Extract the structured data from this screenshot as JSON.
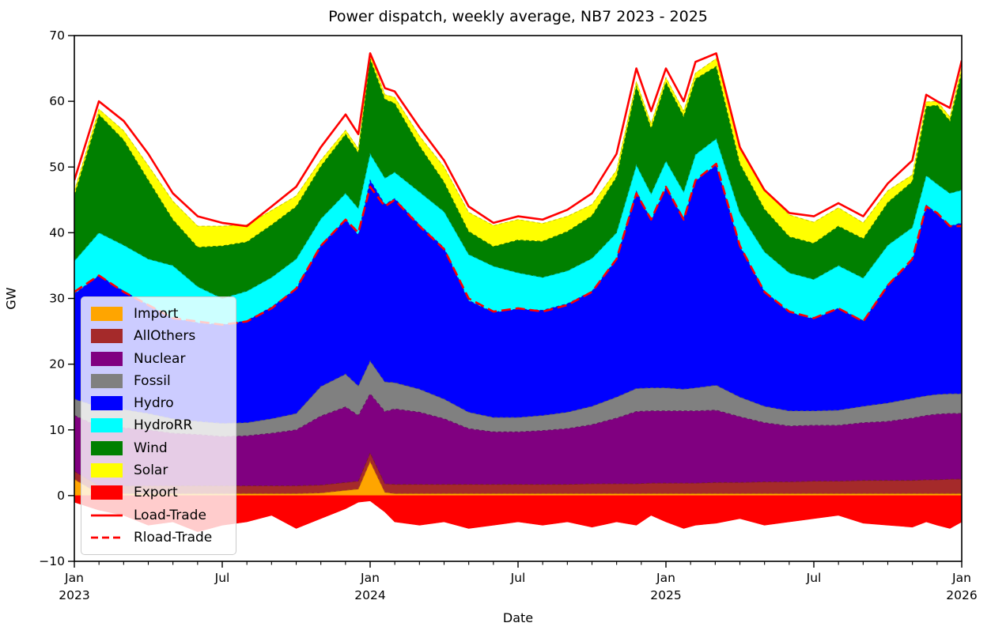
{
  "figure": {
    "title": "Power dispatch, weekly average, NB7 2023 - 2025"
  },
  "chart_data": {
    "type": "area",
    "stacked": true,
    "title": "Power dispatch, weekly average, NB7 2023 - 2025",
    "xlabel": "Date",
    "ylabel": "GW",
    "xlim": [
      2023.0,
      2026.0
    ],
    "ylim": [
      -10,
      70
    ],
    "grid": false,
    "legend_position": "lower left",
    "y_ticks": [
      -10,
      0,
      10,
      20,
      30,
      40,
      50,
      60,
      70
    ],
    "x_ticks": [
      {
        "x": 2023.0,
        "label": "Jan",
        "year": "2023"
      },
      {
        "x": 2023.5,
        "label": "Jul",
        "year": ""
      },
      {
        "x": 2024.0,
        "label": "Jan",
        "year": "2024"
      },
      {
        "x": 2024.5,
        "label": "Jul",
        "year": ""
      },
      {
        "x": 2025.0,
        "label": "Jan",
        "year": "2025"
      },
      {
        "x": 2025.5,
        "label": "Jul",
        "year": ""
      },
      {
        "x": 2026.0,
        "label": "Jan",
        "year": "2026"
      }
    ],
    "x_minor_tick_interval_years": 0.08333,
    "x": [
      2023.0,
      2023.083,
      2023.167,
      2023.25,
      2023.333,
      2023.417,
      2023.5,
      2023.583,
      2023.667,
      2023.75,
      2023.833,
      2023.917,
      2023.96,
      2024.0,
      2024.05,
      2024.083,
      2024.167,
      2024.25,
      2024.333,
      2024.417,
      2024.5,
      2024.583,
      2024.667,
      2024.75,
      2024.833,
      2024.9,
      2024.95,
      2025.0,
      2025.06,
      2025.1,
      2025.17,
      2025.25,
      2025.333,
      2025.417,
      2025.5,
      2025.583,
      2025.667,
      2025.75,
      2025.833,
      2025.88,
      2025.917,
      2025.96,
      2026.0
    ],
    "series": [
      {
        "name": "Import",
        "color": "#ffa500",
        "base": "stack",
        "values": [
          2.5,
          0.3,
          0.3,
          0.3,
          0.3,
          0.3,
          0.3,
          0.3,
          0.3,
          0.3,
          0.4,
          0.8,
          1.0,
          5.2,
          0.5,
          0.3,
          0.3,
          0.3,
          0.3,
          0.3,
          0.3,
          0.3,
          0.3,
          0.3,
          0.3,
          0.3,
          0.3,
          0.3,
          0.3,
          0.3,
          0.3,
          0.3,
          0.3,
          0.3,
          0.3,
          0.3,
          0.3,
          0.3,
          0.3,
          0.3,
          0.3,
          0.3,
          0.3
        ]
      },
      {
        "name": "AllOthers",
        "color": "#a52a2a",
        "base": "stack",
        "values": [
          1.2,
          1.2,
          1.2,
          1.2,
          1.2,
          1.2,
          1.2,
          1.2,
          1.2,
          1.2,
          1.2,
          1.2,
          1.2,
          1.3,
          1.3,
          1.4,
          1.4,
          1.4,
          1.4,
          1.4,
          1.4,
          1.4,
          1.4,
          1.5,
          1.5,
          1.5,
          1.6,
          1.6,
          1.6,
          1.6,
          1.7,
          1.7,
          1.8,
          1.8,
          1.9,
          1.9,
          2.0,
          2.0,
          2.0,
          2.1,
          2.1,
          2.2,
          2.2
        ]
      },
      {
        "name": "Nuclear",
        "color": "#800080",
        "base": "stack",
        "values": [
          8.5,
          9.0,
          8.8,
          8.5,
          8.0,
          7.8,
          7.5,
          7.6,
          8.0,
          8.5,
          10.5,
          11.5,
          10.0,
          9.0,
          11.0,
          11.5,
          11.0,
          10.0,
          8.5,
          8.0,
          8.0,
          8.2,
          8.5,
          9.0,
          10.0,
          11.0,
          11.0,
          11.0,
          11.0,
          11.0,
          11.0,
          10.0,
          9.0,
          8.5,
          8.5,
          8.5,
          8.8,
          9.0,
          9.5,
          9.8,
          10.0,
          10.0,
          10.0
        ]
      },
      {
        "name": "Fossil",
        "color": "#808080",
        "base": "stack",
        "values": [
          2.5,
          3.0,
          2.8,
          2.5,
          2.2,
          2.0,
          2.0,
          2.0,
          2.2,
          2.5,
          4.5,
          5.0,
          4.5,
          5.0,
          4.5,
          4.0,
          3.5,
          3.0,
          2.5,
          2.2,
          2.2,
          2.3,
          2.5,
          2.8,
          3.2,
          3.5,
          3.5,
          3.5,
          3.3,
          3.5,
          3.8,
          3.0,
          2.5,
          2.3,
          2.2,
          2.3,
          2.5,
          2.8,
          3.0,
          3.0,
          3.0,
          3.0,
          3.0
        ]
      },
      {
        "name": "Hydro",
        "color": "#0000ff",
        "base": "stack",
        "values": [
          16,
          20,
          18,
          16.5,
          15.3,
          15,
          15,
          15.5,
          17,
          19,
          21.5,
          23.5,
          23,
          27.5,
          27,
          28,
          25,
          23,
          17,
          16,
          16.5,
          16,
          16.5,
          17.5,
          21,
          30,
          25.5,
          30.5,
          26,
          31.5,
          33.5,
          23,
          17.5,
          15,
          14,
          15.5,
          13,
          18,
          21,
          29,
          27.5,
          25.5,
          26
        ]
      },
      {
        "name": "HydroRR",
        "color": "#00ffff",
        "base": "stack",
        "values": [
          5,
          6.5,
          7,
          7,
          8,
          5.5,
          4,
          4.5,
          4.5,
          4.5,
          4,
          4,
          4,
          4,
          4,
          4,
          5,
          5.5,
          7,
          7,
          5.5,
          5,
          5,
          5,
          4,
          4,
          4,
          4,
          4,
          4,
          4,
          5,
          6,
          6,
          6,
          6.5,
          6.5,
          6,
          5,
          4.5,
          4.5,
          5,
          5
        ]
      },
      {
        "name": "Wind",
        "color": "#008000",
        "base": "stack",
        "values": [
          10,
          18,
          16,
          12,
          7,
          6,
          8,
          7.5,
          8,
          8,
          8,
          9,
          8.5,
          14.5,
          12,
          10.5,
          7,
          4.5,
          3.5,
          3,
          5,
          5.5,
          6,
          6.5,
          8.5,
          12,
          10,
          12,
          11.5,
          11.5,
          11,
          7.5,
          6.5,
          5.5,
          5.5,
          6,
          6,
          6.5,
          7,
          10.5,
          12,
          11,
          18
        ]
      },
      {
        "name": "Solar",
        "color": "#ffff00",
        "base": "stack",
        "values": [
          0.6,
          0.8,
          1.4,
          2.2,
          2.8,
          3.2,
          3.0,
          2.6,
          2.2,
          1.6,
          0.9,
          0.6,
          0.6,
          0.6,
          0.7,
          0.9,
          1.5,
          2.3,
          2.9,
          3.2,
          3.1,
          2.7,
          2.3,
          1.7,
          1.0,
          0.7,
          0.7,
          0.7,
          0.8,
          0.9,
          1.2,
          2.3,
          2.9,
          3.3,
          3.2,
          2.8,
          2.4,
          1.8,
          1.0,
          0.7,
          0.6,
          0.6,
          0.7
        ]
      },
      {
        "name": "Export",
        "color": "#ff0000",
        "base": "zero",
        "values": [
          -1.0,
          -2.2,
          -3.0,
          -4.5,
          -4.0,
          -5.5,
          -4.5,
          -4.0,
          -3.0,
          -5.0,
          -3.5,
          -2.0,
          -1.0,
          -0.8,
          -2.5,
          -4.0,
          -4.5,
          -4.0,
          -5.0,
          -4.5,
          -4.0,
          -4.5,
          -4.0,
          -4.8,
          -4.0,
          -4.5,
          -3.0,
          -4.0,
          -5.0,
          -4.5,
          -4.2,
          -3.5,
          -4.5,
          -4.0,
          -3.5,
          -3.0,
          -4.2,
          -4.5,
          -4.8,
          -4.0,
          -4.5,
          -5.0,
          -4.0
        ]
      }
    ],
    "lines": [
      {
        "name": "Load-Trade",
        "color": "#ff0000",
        "style": "solid",
        "width": 2.6,
        "values": [
          48,
          60,
          57,
          52,
          46,
          42.5,
          41.5,
          41,
          44,
          47,
          53,
          58,
          55,
          67.3,
          62,
          61.5,
          56,
          51,
          44,
          41.5,
          42.5,
          42,
          43.5,
          46,
          52,
          65,
          58.5,
          65,
          60,
          66,
          67.3,
          53,
          46.5,
          43,
          42.5,
          44.5,
          42.5,
          47.5,
          51,
          61,
          60,
          59,
          66.2
        ]
      },
      {
        "name": "Rload-Trade",
        "color": "#ff0000",
        "style": "dashed",
        "width": 2.6,
        "values": [
          31,
          33.5,
          31,
          29,
          27,
          26.5,
          26,
          26.5,
          28.5,
          31.5,
          38,
          42,
          40,
          47,
          44,
          45,
          41,
          37.5,
          30,
          28,
          28.5,
          28,
          29,
          31,
          36,
          46,
          42,
          47,
          42,
          48,
          50.5,
          38,
          31,
          28,
          27,
          28.5,
          26.5,
          32,
          36,
          44,
          43,
          41,
          41
        ]
      }
    ]
  }
}
